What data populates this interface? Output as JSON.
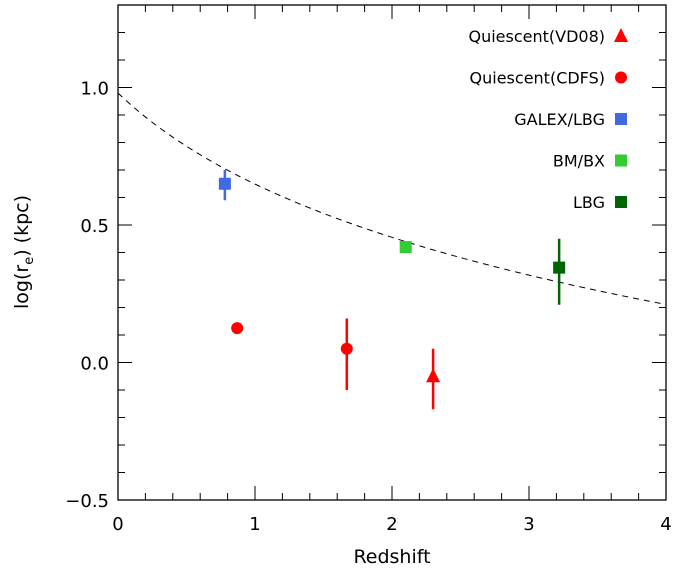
{
  "chart_data": {
    "type": "scatter",
    "xlabel": "Redshift",
    "ylabel_main": "log(r",
    "ylabel_sub": "e",
    "ylabel_tail": ") (kpc)",
    "xlim": [
      0,
      4
    ],
    "ylim": [
      -0.5,
      1.3
    ],
    "x_ticks": [
      {
        "value": 0,
        "label": "0"
      },
      {
        "value": 1,
        "label": "1"
      },
      {
        "value": 2,
        "label": "2"
      },
      {
        "value": 3,
        "label": "3"
      },
      {
        "value": 4,
        "label": "4"
      }
    ],
    "y_ticks": [
      {
        "value": -0.5,
        "label": "−0.5"
      },
      {
        "value": 0.0,
        "label": "0.0"
      },
      {
        "value": 0.5,
        "label": "0.5"
      },
      {
        "value": 1.0,
        "label": "1.0"
      }
    ],
    "x_minor_step": 0.2,
    "y_minor_step": 0.1,
    "legend_position": "top-right",
    "series": [
      {
        "name": "Quiescent(VD08)",
        "marker": "triangle",
        "color": "#ff0000",
        "points": [
          {
            "x": 2.3,
            "y": -0.05,
            "yerr": [
              0.12,
              0.1
            ]
          }
        ]
      },
      {
        "name": "Quiescent(CDFS)",
        "marker": "circle",
        "color": "#ff0000",
        "points": [
          {
            "x": 0.87,
            "y": 0.125,
            "yerr": [
              0,
              0
            ]
          },
          {
            "x": 1.67,
            "y": 0.05,
            "yerr": [
              0.15,
              0.11
            ]
          }
        ]
      },
      {
        "name": "GALEX/LBG",
        "marker": "square",
        "color": "#4169e1",
        "points": [
          {
            "x": 0.78,
            "y": 0.65,
            "yerr": [
              0.06,
              0.05
            ]
          }
        ]
      },
      {
        "name": "BM/BX",
        "marker": "square",
        "color": "#32cd32",
        "points": [
          {
            "x": 2.1,
            "y": 0.42,
            "yerr": [
              0.02,
              0.02
            ]
          }
        ]
      },
      {
        "name": "LBG",
        "marker": "square",
        "color": "#006400",
        "points": [
          {
            "x": 3.22,
            "y": 0.345,
            "yerr": [
              0.135,
              0.105
            ]
          }
        ]
      }
    ],
    "fit_curve": {
      "style": "dashed",
      "color": "#000000",
      "y0": 0.98,
      "exponent": 1.1
    }
  }
}
